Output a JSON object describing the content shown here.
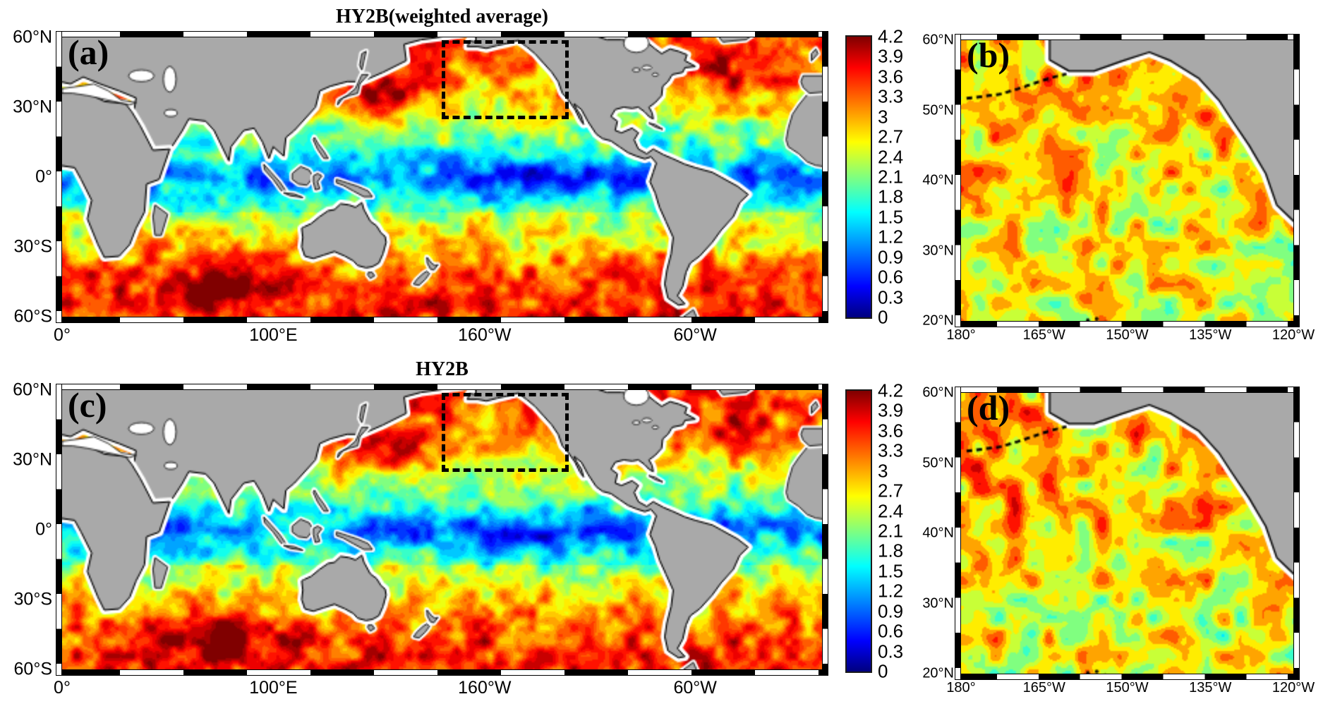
{
  "panels": {
    "a": {
      "letter": "(a)",
      "title": "HY2B(weighted average)",
      "x_ticks": [
        "0°",
        "100°E",
        "160°W",
        "60°W"
      ],
      "y_ticks": [
        "60°N",
        "30°N",
        "0°",
        "30°S",
        "60°S"
      ]
    },
    "b": {
      "letter": "(b)",
      "x_ticks": [
        "180°",
        "165°W",
        "150°W",
        "135°W",
        "120°W"
      ],
      "y_ticks": [
        "60°N",
        "50°N",
        "40°N",
        "30°N",
        "20°N"
      ]
    },
    "c": {
      "letter": "(c)",
      "title": "HY2B",
      "x_ticks": [
        "0°",
        "100°E",
        "160°W",
        "60°W"
      ],
      "y_ticks": [
        "60°N",
        "30°N",
        "0°",
        "30°S",
        "60°S"
      ]
    },
    "d": {
      "letter": "(d)",
      "x_ticks": [
        "180°",
        "165°W",
        "150°W",
        "135°W",
        "120°W"
      ],
      "y_ticks": [
        "60°N",
        "50°N",
        "40°N",
        "30°N",
        "20°N"
      ]
    }
  },
  "colorbar": {
    "ticks": [
      "4.2",
      "3.9",
      "3.6",
      "3.3",
      "3",
      "2.7",
      "2.4",
      "2.1",
      "1.8",
      "1.5",
      "1.2",
      "0.9",
      "0.6",
      "0.3",
      "0"
    ]
  },
  "chart_data": {
    "type": "heatmap",
    "subtype": "filled-contour geographic maps, 2x2 panel scientific figure (MATLAB style)",
    "colormap": "jet",
    "land_color": "#a9a9a9",
    "colorbar_range": [
      0,
      4.2
    ],
    "colorbar_tick_step": 0.3,
    "colorbar_ticks": [
      4.2,
      3.9,
      3.6,
      3.3,
      3,
      2.7,
      2.4,
      2.1,
      1.8,
      1.5,
      1.2,
      0.9,
      0.6,
      0.3,
      0
    ],
    "panels": [
      {
        "id": "(a)",
        "title": "HY2B(weighted average)",
        "region": "global ocean",
        "lon_ticks": [
          "0°",
          "100°E",
          "160°W",
          "60°W"
        ],
        "lat_ticks": [
          "60°N",
          "30°N",
          "0°",
          "30°S",
          "60°S"
        ],
        "dashed_box": {
          "lon_min": "180°",
          "lon_max": "120°W",
          "lat_min": "20°N",
          "lat_max": "60°N"
        },
        "estimated_zonal_means": {
          "60N": 3.1,
          "45N": 3.3,
          "30N": 2.7,
          "15N": 2.2,
          "0": 1.4,
          "15S": 2.4,
          "30S": 3.0,
          "45S": 3.6,
          "60S": 3.4
        }
      },
      {
        "id": "(b)",
        "title": null,
        "region": "Northeast Pacific zoom of dashed box",
        "lon_ticks": [
          "180°",
          "165°W",
          "150°W",
          "135°W",
          "120°W"
        ],
        "lat_ticks": [
          "60°N",
          "50°N",
          "40°N",
          "30°N",
          "20°N"
        ],
        "estimated_mean": 2.8,
        "estimated_range": [
          1.5,
          3.9
        ]
      },
      {
        "id": "(c)",
        "title": "HY2B",
        "region": "global ocean",
        "lon_ticks": [
          "0°",
          "100°E",
          "160°W",
          "60°W"
        ],
        "lat_ticks": [
          "60°N",
          "30°N",
          "0°",
          "30°S",
          "60°S"
        ],
        "dashed_box": {
          "lon_min": "180°",
          "lon_max": "120°W",
          "lat_min": "20°N",
          "lat_max": "60°N"
        },
        "estimated_zonal_means": {
          "60N": 3.1,
          "45N": 3.4,
          "30N": 2.7,
          "15N": 2.2,
          "0": 1.4,
          "15S": 2.4,
          "30S": 3.1,
          "45S": 3.6,
          "60S": 3.4
        }
      },
      {
        "id": "(d)",
        "title": null,
        "region": "Northeast Pacific zoom of dashed box",
        "lon_ticks": [
          "180°",
          "165°W",
          "150°W",
          "135°W",
          "120°W"
        ],
        "lat_ticks": [
          "60°N",
          "50°N",
          "40°N",
          "30°N",
          "20°N"
        ],
        "estimated_mean": 2.8,
        "estimated_range": [
          1.5,
          3.9
        ]
      }
    ]
  }
}
